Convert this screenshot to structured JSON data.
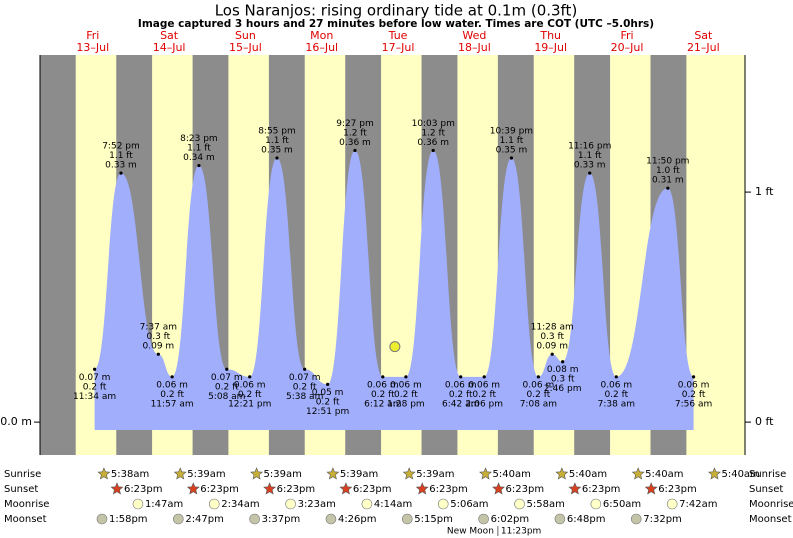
{
  "chart_data": {
    "type": "area",
    "title": "Los Naranjos: rising  ordinary tide at 0.1m (0.3ft)",
    "subtitle": "Image captured 3 hours and 27 minutes before low water. Times are COT (UTC –5.0hrs)",
    "days": [
      "Fri",
      "Sat",
      "Sun",
      "Mon",
      "Tue",
      "Wed",
      "Thu",
      "Fri",
      "Sat"
    ],
    "dates": [
      "13–Jul",
      "14–Jul",
      "15–Jul",
      "16–Jul",
      "17–Jul",
      "18–Jul",
      "19–Jul",
      "20–Jul",
      "21–Jul"
    ],
    "x": [
      11.57,
      19.87,
      31.62,
      35.95,
      44.38,
      53.13,
      60.35,
      68.92,
      77.63,
      84.85,
      93.45,
      102.2,
      109.47,
      118.05,
      126.7,
      134.1,
      142.65,
      151.13,
      155.47,
      158.77,
      167.27,
      175.63,
      191.83,
      199.93
    ],
    "times": [
      "11:34 am",
      "7:52 pm",
      "7:37 am",
      "11:57 am",
      "8:23 pm",
      "5:08 am",
      "12:21 pm",
      "8:55 pm",
      "5:38 am",
      "12:51 pm",
      "9:27 pm",
      "6:12 am",
      "1:28 pm",
      "10:03 pm",
      "6:42 am",
      "2:06 pm",
      "10:39 pm",
      "7:08 am",
      "11:28 am",
      "2:46 pm",
      "11:16 pm",
      "7:38 am",
      "11:50 pm",
      "7:56 am"
    ],
    "values": [
      0.07,
      0.33,
      0.09,
      0.06,
      0.34,
      0.07,
      0.06,
      0.35,
      0.07,
      0.05,
      0.36,
      0.06,
      0.06,
      0.36,
      0.06,
      0.06,
      0.35,
      0.06,
      0.09,
      0.08,
      0.33,
      0.06,
      0.31,
      0.06
    ],
    "value_labels": [
      "0.07 m",
      "0.33 m",
      "0.09 m",
      "0.06 m",
      "0.34 m",
      "0.07 m",
      "0.06 m",
      "0.35 m",
      "0.07 m",
      "0.05 m",
      "0.36 m",
      "0.06 m",
      "0.06 m",
      "0.36 m",
      "0.06 m",
      "0.06 m",
      "0.35 m",
      "0.06 m",
      "0.09 m",
      "0.08 m",
      "0.33 m",
      "0.06 m",
      "0.31 m",
      "0.06 m"
    ],
    "ft_labels": [
      "0.2 ft",
      "1.1 ft",
      "0.3 ft",
      "0.2 ft",
      "1.1 ft",
      "0.2 ft",
      "0.2 ft",
      "1.1 ft",
      "0.2 ft",
      "0.2 ft",
      "1.2 ft",
      "0.2 ft",
      "0.2 ft",
      "1.2 ft",
      "0.2 ft",
      "0.2 ft",
      "1.1 ft",
      "0.2 ft",
      "0.3 ft",
      "0.3 ft",
      "1.1 ft",
      "0.2 ft",
      "1.0 ft",
      "0.2 ft"
    ],
    "color": "#a0aefc",
    "xlim": [
      -5.6,
      216.1
    ],
    "ylim": [
      -0.0436,
      0.4865
    ],
    "yticks": [
      {
        "value": 0,
        "label": "0.0 m"
      }
    ],
    "y2lim": [
      -0.143,
      1.596
    ],
    "y2ticks": [
      {
        "value": 0,
        "label": "0 ft"
      },
      {
        "value": 1,
        "label": "1 ft"
      }
    ],
    "current": {
      "x": 106.0,
      "value": 0.1
    }
  },
  "almanac": {
    "rows": [
      {
        "label": "Sunrise",
        "times": [
          "5:38am",
          "5:39am",
          "5:39am",
          "5:39am",
          "5:39am",
          "5:40am",
          "5:40am",
          "5:40am",
          "5:40am"
        ]
      },
      {
        "label": "Sunset",
        "times": [
          "6:23pm",
          "6:23pm",
          "6:23pm",
          "6:23pm",
          "6:23pm",
          "6:23pm",
          "6:23pm",
          "6:23pm",
          null
        ]
      },
      {
        "label": "Moonrise",
        "times": [
          null,
          "1:47am",
          "2:34am",
          "3:23am",
          "4:14am",
          "5:06am",
          "5:58am",
          "6:50am",
          "7:42am"
        ]
      },
      {
        "label": "Moonset",
        "times": [
          "1:58pm",
          "2:47pm",
          "3:37pm",
          "4:26pm",
          "5:15pm",
          "6:02pm",
          "6:48pm",
          "7:32pm",
          null
        ]
      }
    ],
    "new_moon": {
      "label": "New Moon",
      "time": "11:23pm"
    }
  }
}
